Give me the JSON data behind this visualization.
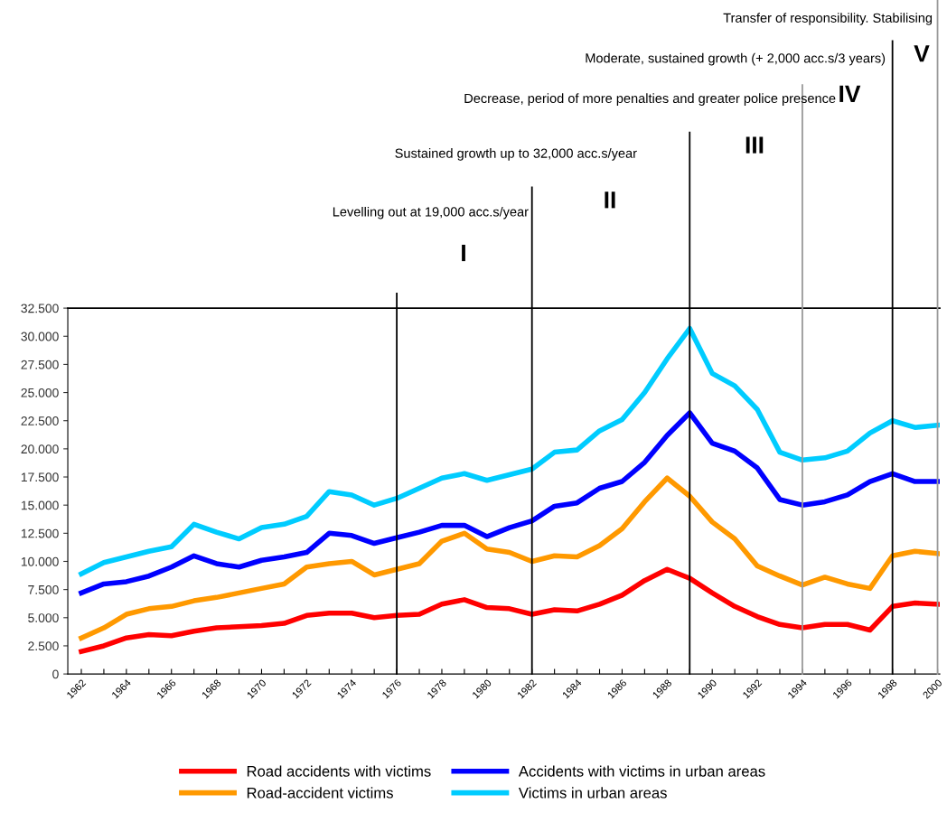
{
  "chart_data": {
    "type": "line",
    "x": [
      1962,
      1963,
      1964,
      1965,
      1966,
      1967,
      1968,
      1969,
      1970,
      1971,
      1972,
      1973,
      1974,
      1975,
      1976,
      1977,
      1978,
      1979,
      1980,
      1981,
      1982,
      1983,
      1984,
      1985,
      1986,
      1987,
      1988,
      1989,
      1990,
      1991,
      1992,
      1993,
      1994,
      1995,
      1996,
      1997,
      1998,
      1999,
      2000
    ],
    "series": [
      {
        "name": "Road accidents with victims",
        "color": "#ff0000",
        "values": [
          2000,
          2500,
          3200,
          3500,
          3400,
          3800,
          4100,
          4200,
          4300,
          4500,
          5200,
          5400,
          5400,
          5000,
          5200,
          5300,
          6200,
          6600,
          5900,
          5800,
          5300,
          5700,
          5600,
          6200,
          7000,
          8300,
          9300,
          8500,
          7200,
          6000,
          5100,
          4400,
          4100,
          4400,
          4400,
          3900,
          6000,
          6300,
          6200
        ]
      },
      {
        "name": "Road-accident victims",
        "color": "#ff9900",
        "values": [
          3200,
          4100,
          5300,
          5800,
          6000,
          6500,
          6800,
          7200,
          7600,
          8000,
          9500,
          9800,
          10000,
          8800,
          9300,
          9800,
          11800,
          12500,
          11100,
          10800,
          10000,
          10500,
          10400,
          11400,
          12900,
          15300,
          17400,
          15800,
          13500,
          12000,
          9600,
          8700,
          7900,
          8600,
          8000,
          7600,
          10500,
          10900,
          10700
        ]
      },
      {
        "name": "Accidents with victims in urban areas",
        "color": "#0000ff",
        "values": [
          7200,
          8000,
          8200,
          8700,
          9500,
          10500,
          9800,
          9500,
          10100,
          10400,
          10800,
          12500,
          12300,
          11600,
          12100,
          12600,
          13200,
          13200,
          12200,
          13000,
          13600,
          14900,
          15200,
          16500,
          17100,
          18800,
          21200,
          23200,
          20500,
          19800,
          18300,
          15500,
          15000,
          15300,
          15900,
          17100,
          17800,
          17100,
          17100
        ]
      },
      {
        "name": "Victims in urban areas",
        "color": "#00ccff",
        "values": [
          8900,
          9900,
          10400,
          10900,
          11300,
          13300,
          12600,
          12000,
          13000,
          13300,
          14000,
          16200,
          15900,
          15000,
          15600,
          16500,
          17400,
          17800,
          17200,
          17700,
          18200,
          19700,
          19900,
          21600,
          22600,
          25000,
          28000,
          30700,
          26700,
          25600,
          23500,
          19700,
          19000,
          19200,
          19800,
          21400,
          22500,
          21900,
          22100
        ]
      }
    ],
    "xlim": [
      1961.4,
      2000.1
    ],
    "xticks": [
      1962,
      {
        "value": 1963,
        "label": null
      },
      1964,
      {
        "value": 1965,
        "label": null
      },
      1966,
      {
        "value": 1967,
        "label": null
      },
      1968,
      {
        "value": 1969,
        "label": null
      },
      1970,
      {
        "value": 1971,
        "label": null
      },
      1972,
      {
        "value": 1973,
        "label": null
      },
      1974,
      {
        "value": 1975,
        "label": null
      },
      1976,
      {
        "value": 1977,
        "label": null
      },
      1978,
      {
        "value": 1979,
        "label": null
      },
      1980,
      {
        "value": 1981,
        "label": null
      },
      1982,
      {
        "value": 1983,
        "label": null
      },
      1984,
      {
        "value": 1985,
        "label": null
      },
      1986,
      {
        "value": 1987,
        "label": null
      },
      1988,
      {
        "value": 1989,
        "label": null
      },
      1990,
      {
        "value": 1991,
        "label": null
      },
      1992,
      {
        "value": 1993,
        "label": null
      },
      1994,
      {
        "value": 1995,
        "label": null
      },
      1996,
      {
        "value": 1997,
        "label": null
      },
      1998,
      {
        "value": 1999,
        "label": null
      },
      2000
    ],
    "ylim": [
      0,
      32500
    ],
    "yticks": [
      0,
      {
        "value": 2500,
        "label": "2.500"
      },
      {
        "value": 5000,
        "label": "5.000"
      },
      {
        "value": 7500,
        "label": "7.500"
      },
      {
        "value": 10000,
        "label": "10.000"
      },
      {
        "value": 12500,
        "label": "12.500"
      },
      {
        "value": 15000,
        "label": "15.000"
      },
      {
        "value": 17500,
        "label": "17.500"
      },
      {
        "value": 20000,
        "label": "20.000"
      },
      {
        "value": 22500,
        "label": "22.500"
      },
      {
        "value": 25000,
        "label": "25.000"
      },
      {
        "value": 27500,
        "label": "27.500"
      },
      {
        "value": 30000,
        "label": "30.000"
      },
      {
        "value": 32500,
        "label": "32.500"
      }
    ],
    "ref_lines": [
      {
        "axis": "x",
        "value": 1976,
        "color": "#000000"
      },
      {
        "axis": "x",
        "value": 1982,
        "color": "#000000"
      },
      {
        "axis": "x",
        "value": 1989,
        "color": "#000000"
      },
      {
        "axis": "x",
        "value": 1994,
        "color": "#999999"
      },
      {
        "axis": "x",
        "value": 1998,
        "color": "#000000"
      },
      {
        "axis": "x",
        "value": 2000,
        "color": "#999999"
      }
    ],
    "annotations": [
      "Levelling out at 19,000 acc.s/year",
      "Sustained growth up to 32,000 acc.s/year",
      "Decrease, period of more penalties and greater police presence",
      "Moderate, sustained growth (+ 2,000 acc.s/3 years)",
      "Transfer of responsibility. Stabilising",
      "I",
      "II",
      "III",
      "IV",
      "V"
    ],
    "grid": false,
    "legend": "bottom",
    "marker": "none",
    "line_style": "solid"
  }
}
